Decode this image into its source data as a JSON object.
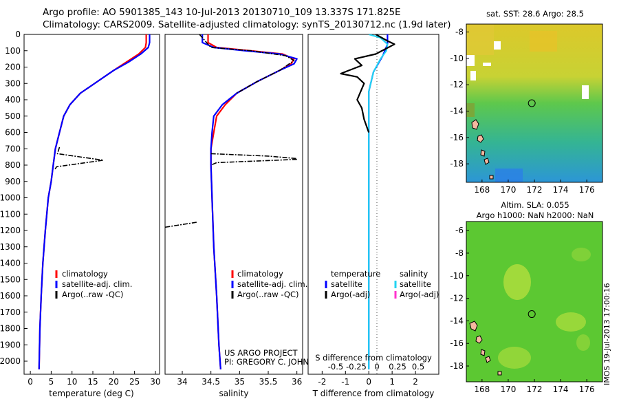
{
  "header": {
    "line1": "Argo profile: AO 5901385_143 10-Jul-2013 20130710_109 13.337S 171.825E",
    "line2": "Climatology: CARS2009. Satellite-adjusted climatology: synTS_20130712.nc (1.9d later)"
  },
  "credit": {
    "line1": "US ARGO PROJECT",
    "line2": "PI: GREGORY C. JOHNSON"
  },
  "stamp": "IMOS 19-Jul-2013 17:00:16",
  "colors": {
    "climatology": "#ff0000",
    "satellite": "#0000ff",
    "argo": "#000000",
    "sal_satellite": "#22d3f2",
    "sal_argo": "#ff33cc"
  },
  "chart_data": [
    {
      "type": "line",
      "xlabel": "temperature (deg C)",
      "xlim": [
        -1.5,
        31
      ],
      "xticks": [
        0,
        5,
        10,
        15,
        20,
        25,
        30
      ],
      "ylim": [
        2080,
        0
      ],
      "yticks": [
        0,
        100,
        200,
        300,
        400,
        500,
        600,
        700,
        800,
        900,
        1000,
        1100,
        1200,
        1300,
        1400,
        1500,
        1600,
        1700,
        1800,
        1900,
        2000
      ],
      "legend": [
        {
          "label": "climatology",
          "color": "#ff0000"
        },
        {
          "label": "satellite-adj. clim.",
          "color": "#0000ff"
        },
        {
          "label": "Argo(..raw -QC)",
          "color": "#000000"
        }
      ],
      "series": [
        {
          "name": "climatology",
          "color": "#ff0000",
          "style": "solid",
          "x": [
            27.8,
            27.8,
            27.6,
            26,
            23,
            20,
            16,
            12,
            9.5,
            8,
            7,
            6,
            5.5,
            5,
            4.3,
            3.6,
            3,
            2.6,
            2.3,
            2.1
          ],
          "y": [
            0,
            50,
            80,
            120,
            170,
            220,
            290,
            360,
            430,
            500,
            600,
            700,
            800,
            900,
            1000,
            1200,
            1400,
            1600,
            1800,
            2050
          ]
        },
        {
          "name": "satellite-adj. clim.",
          "color": "#0000ff",
          "style": "solid",
          "x": [
            28.6,
            28.6,
            28.3,
            26.5,
            23.5,
            20,
            16,
            12,
            9.5,
            8,
            7,
            6,
            5.5,
            5,
            4.3,
            3.6,
            3,
            2.6,
            2.3,
            2.1
          ],
          "y": [
            0,
            50,
            80,
            120,
            170,
            220,
            290,
            360,
            430,
            500,
            600,
            700,
            800,
            900,
            1000,
            1200,
            1400,
            1600,
            1800,
            2050
          ]
        },
        {
          "name": "Argo(..raw -QC)",
          "color": "#000000",
          "style": "dashdot",
          "x": [
            7,
            6.5,
            17.5,
            6.3,
            5.8
          ],
          "y": [
            690,
            730,
            770,
            810,
            830
          ]
        }
      ]
    },
    {
      "type": "line",
      "xlabel": "salinity",
      "xlim": [
        33.7,
        36.1
      ],
      "xticks": [
        34,
        34.5,
        35,
        35.5,
        36
      ],
      "legend": [
        {
          "label": "climatology",
          "color": "#ff0000"
        },
        {
          "label": "satellite-adj. clim.",
          "color": "#0000ff"
        },
        {
          "label": "Argo(..raw -QC)",
          "color": "#000000"
        }
      ],
      "series": [
        {
          "name": "climatology",
          "color": "#ff0000",
          "style": "solid",
          "x": [
            34.45,
            34.45,
            34.6,
            35.2,
            35.75,
            35.95,
            35.9,
            35.7,
            35.3,
            34.95,
            34.75,
            34.6,
            34.55,
            34.5,
            34.5,
            34.52,
            34.55,
            34.6,
            34.64,
            34.67
          ],
          "y": [
            0,
            50,
            80,
            100,
            120,
            150,
            180,
            220,
            290,
            360,
            430,
            500,
            600,
            700,
            800,
            1000,
            1300,
            1600,
            1900,
            2050
          ]
        },
        {
          "name": "satellite-adj. clim.",
          "color": "#0000ff",
          "style": "solid",
          "x": [
            34.35,
            34.35,
            34.55,
            35.1,
            35.7,
            36,
            35.95,
            35.7,
            35.3,
            34.95,
            34.7,
            34.55,
            34.52,
            34.5,
            34.5,
            34.52,
            34.55,
            34.6,
            34.64,
            34.67
          ],
          "y": [
            0,
            50,
            80,
            100,
            120,
            150,
            180,
            220,
            290,
            360,
            430,
            500,
            600,
            700,
            800,
            1000,
            1300,
            1600,
            1900,
            2050
          ]
        },
        {
          "name": "Argo upper",
          "color": "#000000",
          "style": "dashdot",
          "x": [
            34.3,
            34.4,
            34.5,
            35.2,
            35.8,
            35.95,
            35.7,
            35.3,
            34.95
          ],
          "y": [
            0,
            40,
            80,
            100,
            130,
            160,
            220,
            290,
            360
          ]
        },
        {
          "name": "Argo spike 1",
          "color": "#000000",
          "style": "dashdot",
          "x": [
            34.5,
            35.5,
            36
          ],
          "y": [
            730,
            745,
            760
          ]
        },
        {
          "name": "Argo spike 2",
          "color": "#000000",
          "style": "dashdot",
          "x": [
            36,
            34.6,
            34.5
          ],
          "y": [
            765,
            785,
            800
          ]
        },
        {
          "name": "Argo spike 3",
          "color": "#000000",
          "style": "dashdot",
          "x": [
            34.25,
            33.7
          ],
          "y": [
            1150,
            1180
          ]
        }
      ]
    },
    {
      "type": "line",
      "xlabel_top": "S difference from climatology",
      "xlabel": "T difference from climatology",
      "xlim": [
        -2.6,
        3
      ],
      "xticks": [
        -2,
        -1,
        0,
        1,
        2
      ],
      "xticks_top": [
        "-0.5",
        "-0.25",
        "0",
        "0.25",
        "0.5"
      ],
      "legend_temperature": {
        "title": "temperature",
        "items": [
          {
            "label": "satellite",
            "color": "#0000ff"
          },
          {
            "label": "Argo(-adj)",
            "color": "#000000"
          }
        ]
      },
      "legend_salinity": {
        "title": "salinity",
        "items": [
          {
            "label": "satellite",
            "color": "#22d3f2"
          },
          {
            "label": "Argo(-adj)",
            "color": "#ff33cc"
          }
        ]
      },
      "series": [
        {
          "name": "T satellite",
          "color": "#0000ff",
          "style": "solid",
          "x": [
            0.8,
            0.8,
            0.6,
            0.2,
            0,
            0,
            0,
            0
          ],
          "y": [
            0,
            60,
            130,
            230,
            350,
            600,
            1000,
            2050
          ]
        },
        {
          "name": "S satellite",
          "color": "#22d3f2",
          "style": "solid",
          "x": [
            0,
            0.5,
            0.8,
            0.75,
            0.5,
            0.2,
            0,
            0,
            0
          ],
          "y": [
            0,
            20,
            60,
            100,
            150,
            230,
            350,
            700,
            2050
          ]
        },
        {
          "name": "T Argo",
          "color": "#000000",
          "style": "solid",
          "x": [
            0.3,
            0.8,
            1.1,
            0.7,
            0.3,
            -0.6,
            -0.3,
            -1.2,
            -0.5,
            -0.2,
            -0.5,
            -0.3,
            -0.2,
            0
          ],
          "y": [
            0,
            40,
            60,
            90,
            120,
            150,
            190,
            240,
            260,
            300,
            400,
            450,
            520,
            600
          ]
        }
      ]
    },
    {
      "type": "heatmap",
      "title": "sat. SST: 28.6 Argo: 28.5",
      "xticks": [
        168,
        170,
        172,
        174,
        176
      ],
      "yticks": [
        -8,
        -10,
        -12,
        -14,
        -16,
        -18
      ],
      "xlim": [
        166.8,
        177.2
      ],
      "ylim": [
        -19.4,
        -7.4
      ],
      "marker": {
        "lon": 171.8,
        "lat": -13.4
      }
    },
    {
      "type": "heatmap",
      "title": "Altim. SLA: 0.055",
      "subtitle": "Argo h1000: NaN h2000: NaN",
      "xticks": [
        168,
        170,
        172,
        174,
        176
      ],
      "yticks": [
        -6,
        -8,
        -10,
        -12,
        -14,
        -16,
        -18
      ],
      "xlim": [
        166.8,
        177.2
      ],
      "ylim": [
        -19.4,
        -5.2
      ],
      "marker": {
        "lon": 171.8,
        "lat": -13.4
      }
    }
  ]
}
